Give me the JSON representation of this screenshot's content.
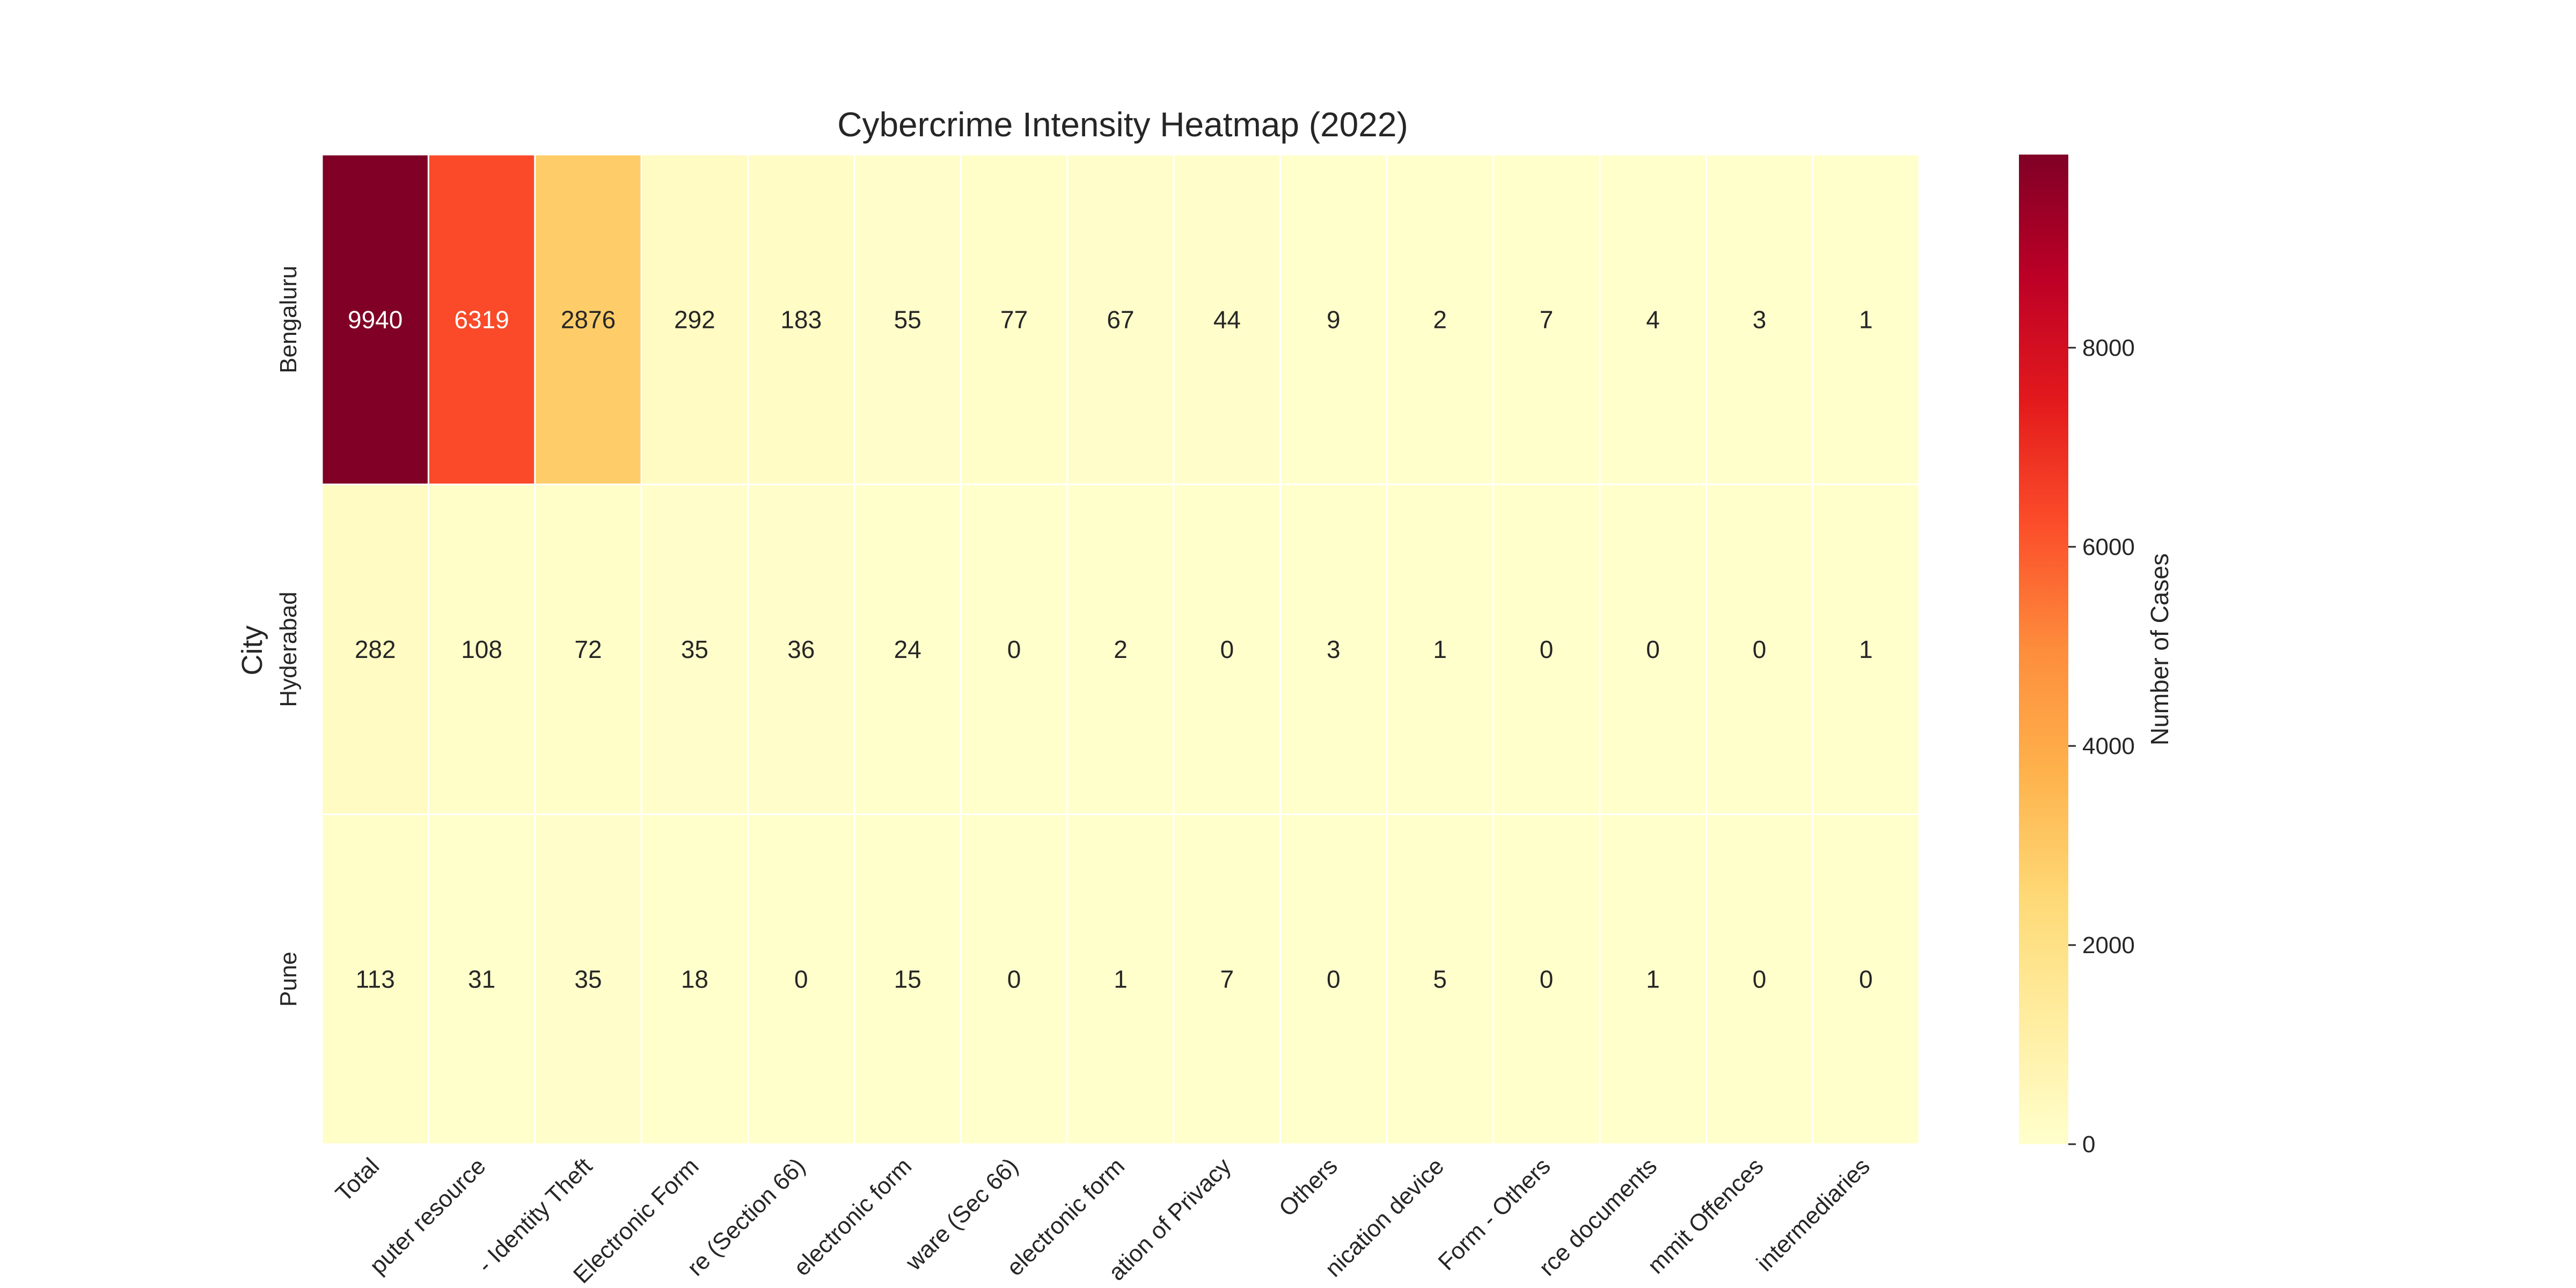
{
  "chart_data": {
    "type": "heatmap",
    "title": "Cybercrime Intensity Heatmap (2022)",
    "ylabel": "City",
    "xlabel": "",
    "rows": [
      "Bengaluru",
      "Hyderabad",
      "Pune"
    ],
    "columns": [
      "Total",
      "puter resource",
      "- Identity Theft",
      "Electronic Form",
      "re (Section 66)",
      "electronic form",
      "ware (Sec 66)",
      "electronic form",
      "ation of Privacy",
      "Others",
      "nication device",
      "Form - Others",
      "rce documents",
      "mmit Offences",
      "intermediaries"
    ],
    "values": [
      [
        9940,
        6319,
        2876,
        292,
        183,
        55,
        77,
        67,
        44,
        9,
        2,
        7,
        4,
        3,
        1
      ],
      [
        282,
        108,
        72,
        35,
        36,
        24,
        0,
        2,
        0,
        3,
        1,
        0,
        0,
        0,
        1
      ],
      [
        113,
        31,
        35,
        18,
        0,
        15,
        0,
        1,
        7,
        0,
        5,
        0,
        1,
        0,
        0
      ]
    ],
    "colorbar": {
      "label": "Number of Cases",
      "min": 0,
      "max": 9940,
      "ticks": [
        0,
        2000,
        4000,
        6000,
        8000
      ],
      "colormap": "YlOrRd",
      "stops": [
        "#ffffcc",
        "#ffeda0",
        "#fed976",
        "#feb24c",
        "#fd8d3c",
        "#fc4e2a",
        "#e31a1c",
        "#bd0026",
        "#800026"
      ]
    },
    "grid": false
  }
}
